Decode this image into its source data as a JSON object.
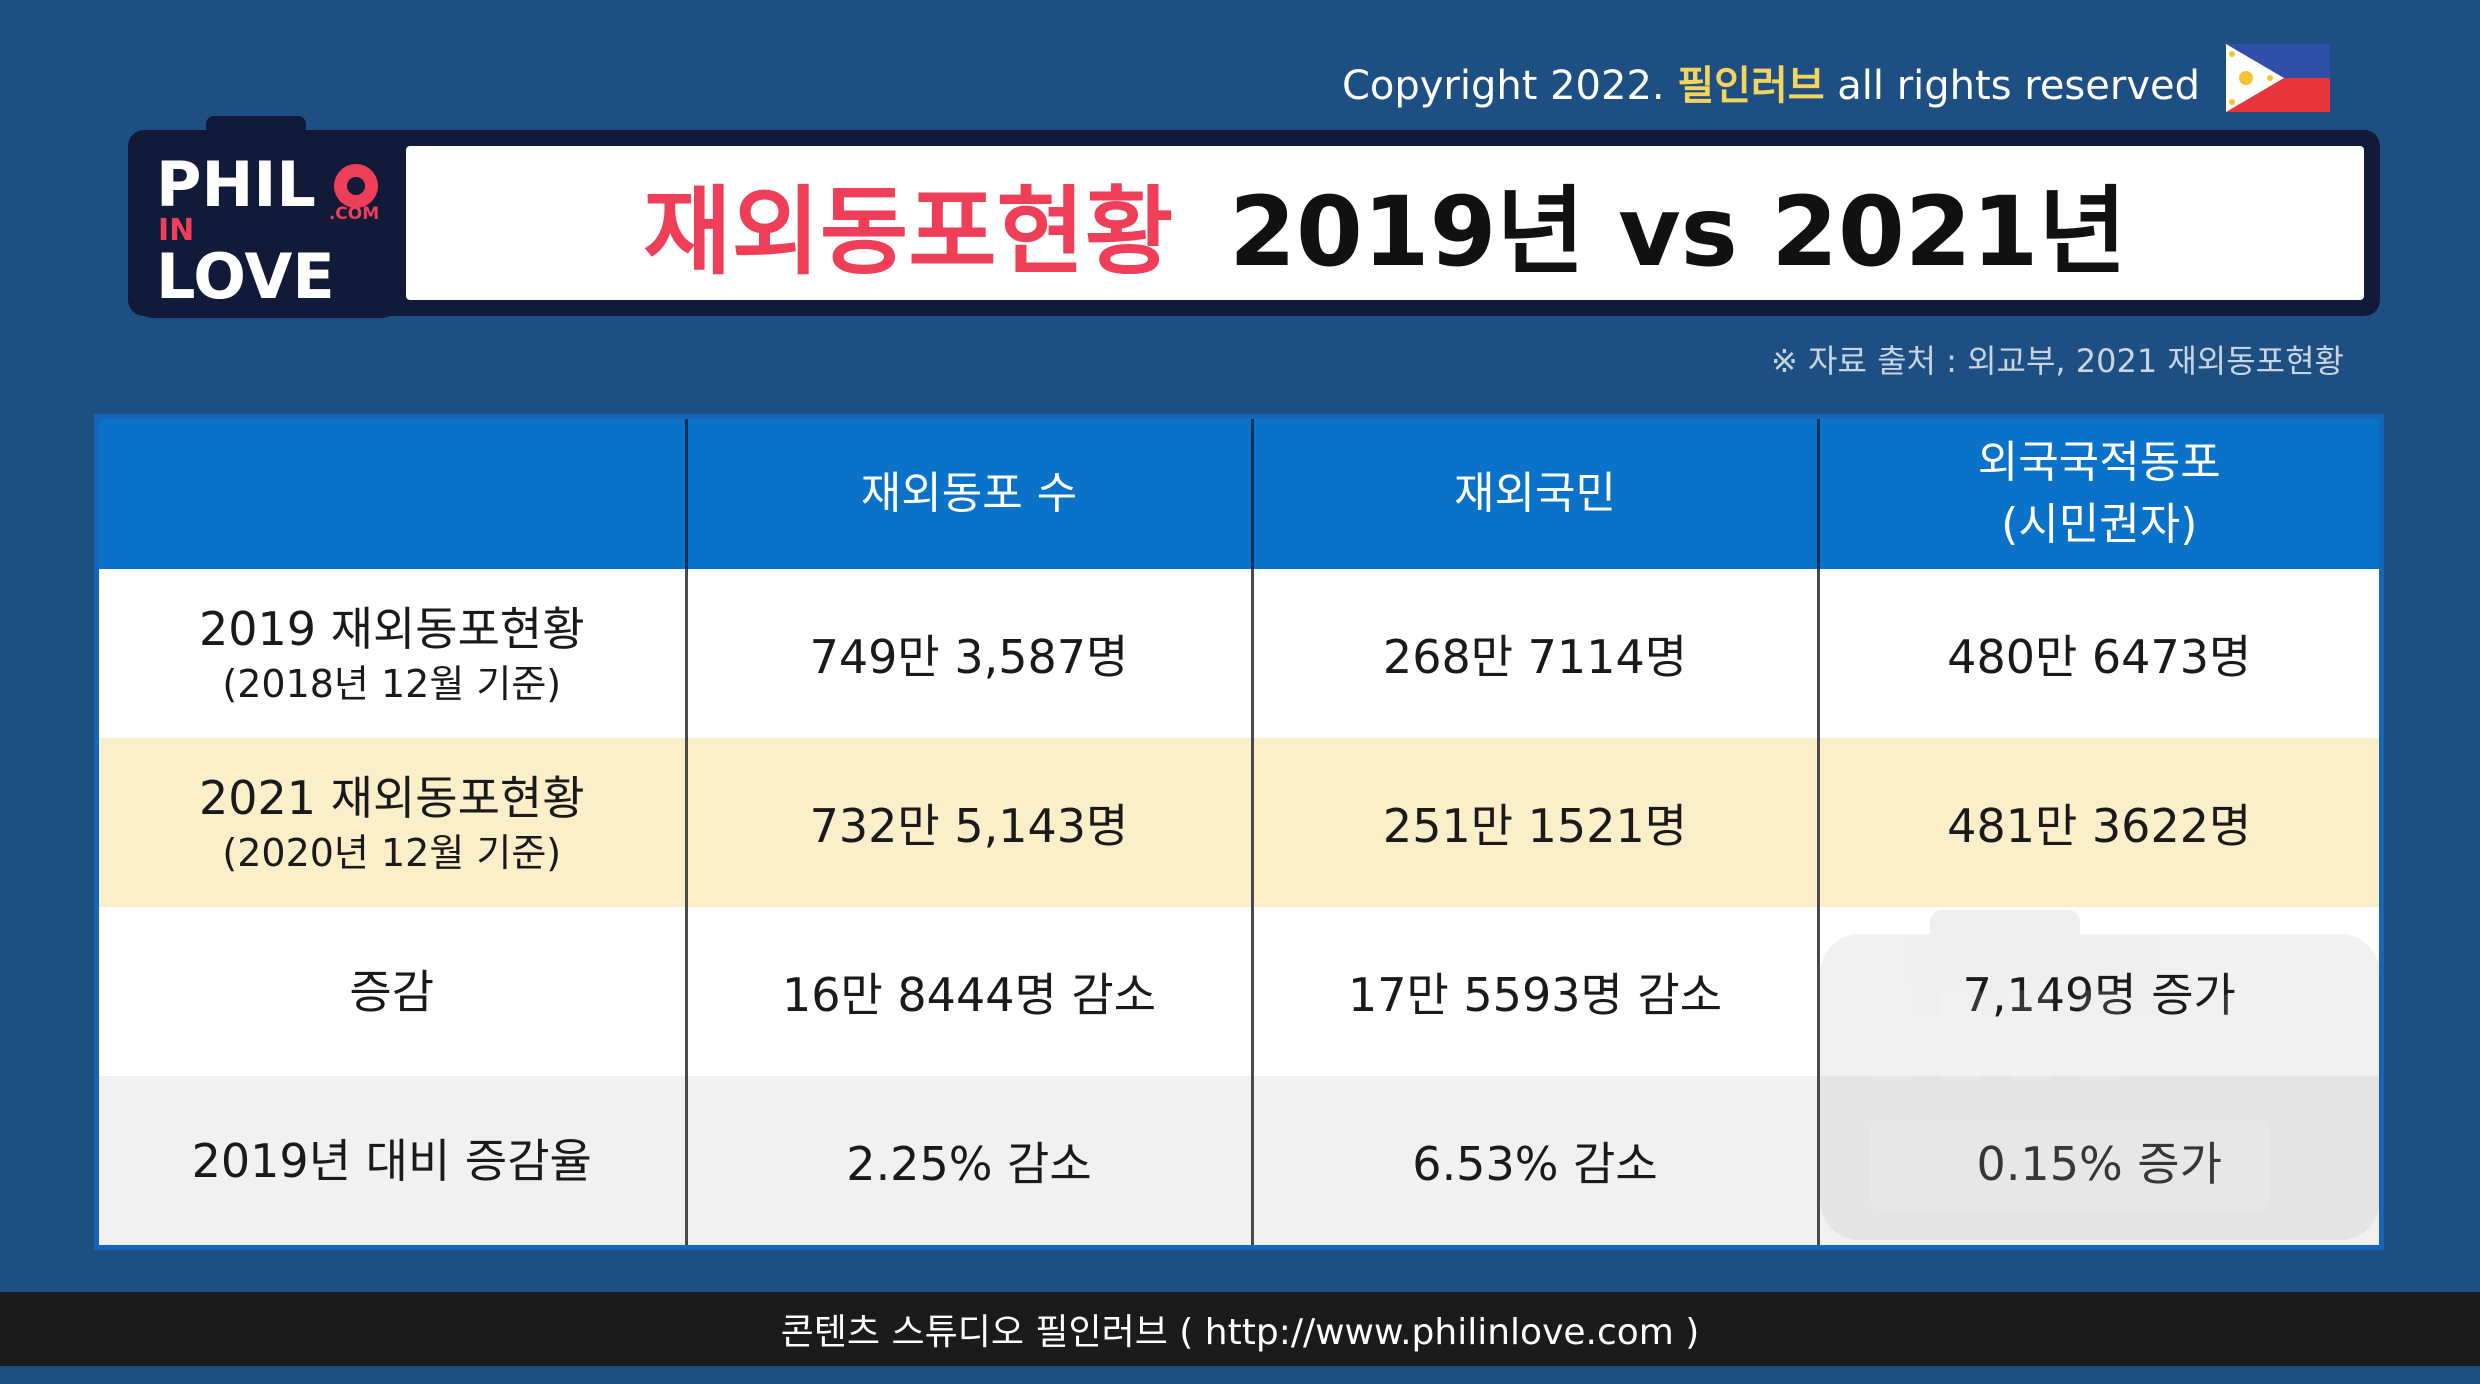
{
  "header": {
    "copyright_prefix": "Copyright 2022.",
    "copyright_brand": "필인러브",
    "copyright_suffix": "all rights reserved",
    "flag_icon": "philippines-flag-icon",
    "logo": {
      "line1": "PHIL",
      "line2": "IN",
      "line3": "LOVE",
      "dot_com": ".COM"
    }
  },
  "title": {
    "highlight": "재외동포현황",
    "main": "2019년 vs 2021년"
  },
  "source": "※ 자료 출처 :  외교부, 2021 재외동포현황",
  "table": {
    "headers": [
      {
        "line1": "",
        "line2": ""
      },
      {
        "line1": "재외동포 수",
        "line2": ""
      },
      {
        "line1": "재외국민",
        "line2": ""
      },
      {
        "line1": "외국국적동포",
        "line2": "(시민권자)"
      }
    ],
    "rows": [
      {
        "label": "2019 재외동포현황",
        "sub": "(2018년 12월 기준)",
        "values": [
          "749만 3,587명",
          "268만 7114명",
          "480만 6473명"
        ]
      },
      {
        "label": "2021 재외동포현황",
        "sub": "(2020년 12월 기준)",
        "values": [
          "732만 5,143명",
          "251만 1521명",
          "481만 3622명"
        ]
      },
      {
        "label": "증감",
        "sub": "",
        "values": [
          "16만 8444명 감소",
          "17만 5593명 감소",
          "7,149명 증가"
        ]
      },
      {
        "label": "2019년 대비 증감율",
        "sub": "",
        "values": [
          "2.25% 감소",
          "6.53% 감소",
          "0.15% 증가"
        ]
      }
    ]
  },
  "footer": "콘텐츠 스튜디오 필인러브 ( http://www.philinlove.com )",
  "colors": {
    "background": "#1d4f82",
    "title_red": "#ef3e58",
    "header_blue": "#0a72c9",
    "cream_row": "#fbefca"
  }
}
